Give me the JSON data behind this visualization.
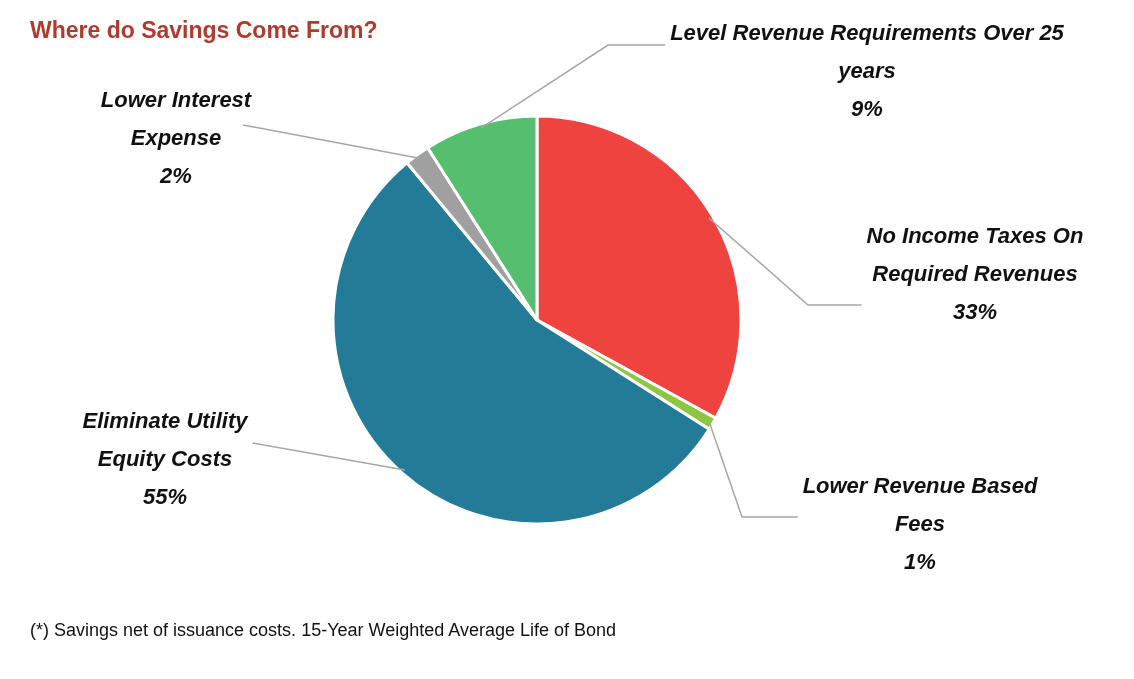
{
  "chart_data": {
    "type": "pie",
    "title": "Where do Savings Come From?",
    "categories": [
      "No Income Taxes On Required Revenues",
      "Lower Revenue Based Fees",
      "Eliminate Utility Equity Costs",
      "Lower Interest Expense",
      "Level Revenue Requirements Over 25 years"
    ],
    "values": [
      33,
      1,
      55,
      2,
      9
    ],
    "value_labels": [
      "33%",
      "1%",
      "55%",
      "2%",
      "9%"
    ],
    "colors": [
      "#ef4340",
      "#8dc63f",
      "#237b98",
      "#a0a0a0",
      "#55bf6f"
    ],
    "annotations": [
      "(*)  Savings net of issuance costs. 15-Year Weighted Average Life of Bond"
    ]
  }
}
